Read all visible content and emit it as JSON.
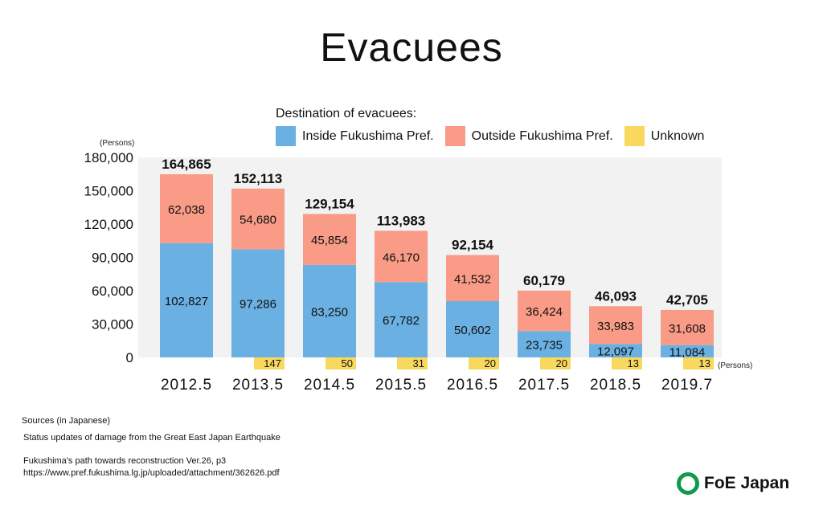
{
  "title": "Evacuees",
  "legend": {
    "title": "Destination of evacuees:",
    "items": [
      {
        "label": "Inside Fukushima Pref.",
        "color": "#6ab0e2"
      },
      {
        "label": "Outside Fukushima Pref.",
        "color": "#f99b86"
      },
      {
        "label": "Unknown",
        "color": "#f8d95e"
      }
    ]
  },
  "chart_data": {
    "type": "bar",
    "stacked": true,
    "y_unit_label": "(Persons)",
    "x_unit_label": "(Persons)",
    "ylim": [
      0,
      180000
    ],
    "yticks": [
      "0",
      "30,000",
      "60,000",
      "90,000",
      "120,000",
      "150,000",
      "180,000"
    ],
    "categories": [
      "2012.5",
      "2013.5",
      "2014.5",
      "2015.5",
      "2016.5",
      "2017.5",
      "2018.5",
      "2019.7"
    ],
    "series": [
      {
        "name": "Inside Fukushima Pref.",
        "values": [
          102827,
          97286,
          83250,
          67782,
          50602,
          23735,
          12097,
          11084
        ],
        "labels": [
          "102,827",
          "97,286",
          "83,250",
          "67,782",
          "50,602",
          "23,735",
          "12,097",
          "11,084"
        ]
      },
      {
        "name": "Outside Fukushima Pref.",
        "values": [
          62038,
          54680,
          45854,
          46170,
          41532,
          36424,
          33983,
          31608
        ],
        "labels": [
          "62,038",
          "54,680",
          "45,854",
          "46,170",
          "41,532",
          "36,424",
          "33,983",
          "31,608"
        ]
      },
      {
        "name": "Unknown",
        "values": [
          null,
          147,
          50,
          31,
          20,
          20,
          13,
          13
        ],
        "labels": [
          "",
          "147",
          "50",
          "31",
          "20",
          "20",
          "13",
          "13"
        ]
      }
    ],
    "totals": [
      164865,
      152113,
      129154,
      113983,
      92154,
      60179,
      46093,
      42705
    ],
    "total_labels": [
      "164,865",
      "152,113",
      "129,154",
      "113,983",
      "92,154",
      "60,179",
      "46,093",
      "42,705"
    ],
    "grid": false,
    "plot_background": "#f2f2f2"
  },
  "sources": {
    "heading": "Sources (in Japanese)",
    "lines": [
      "Status updates of damage from the Great East Japan Earthquake",
      "",
      "Fukushima's path towards reconstruction Ver.26, p3",
      "https://www.pref.fukushima.lg.jp/uploaded/attachment/362626.pdf"
    ]
  },
  "logo": {
    "text": "FoE Japan",
    "color": "#0f9b4a"
  }
}
